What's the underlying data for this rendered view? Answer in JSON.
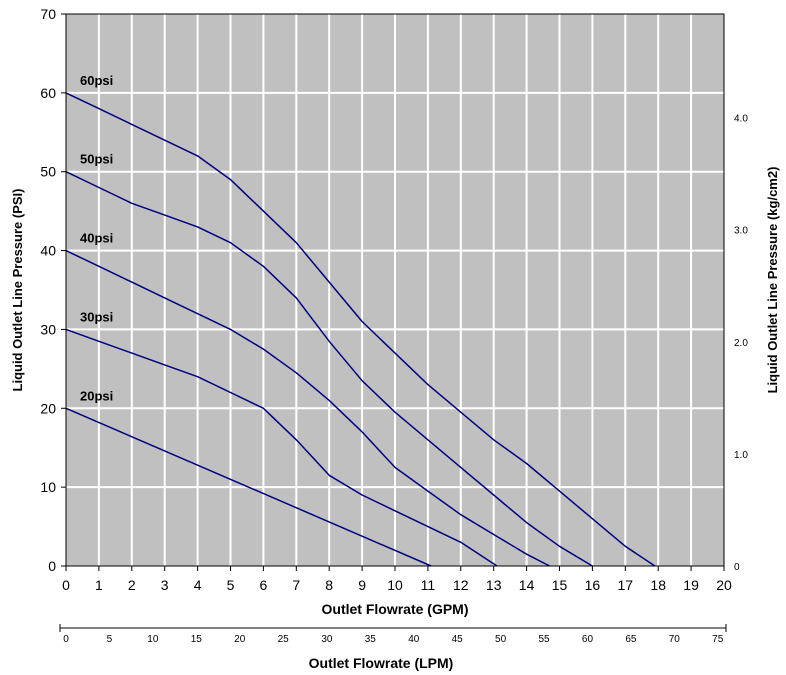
{
  "chart_data": {
    "type": "line",
    "background_color": "#c0c0c0",
    "grid": true,
    "grid_color": "#ffffff",
    "line_color": "#000080",
    "x": {
      "label": "Outlet Flowrate (GPM)",
      "lim": [
        0,
        20
      ],
      "ticks": [
        "0",
        "1",
        "2",
        "3",
        "4",
        "5",
        "6",
        "7",
        "8",
        "9",
        "10",
        "11",
        "12",
        "13",
        "14",
        "15",
        "16",
        "17",
        "18",
        "19",
        "20"
      ]
    },
    "y_left": {
      "label": "Liquid Outlet Line Pressure (PSI)",
      "lim": [
        0,
        70
      ],
      "ticks": [
        "0",
        "10",
        "20",
        "30",
        "40",
        "50",
        "60",
        "70"
      ]
    },
    "y_right": {
      "label": "Liquid Outlet Line Pressure (kg/cm2)",
      "ticks": [
        {
          "label": "0",
          "psi": 0
        },
        {
          "label": "1.0",
          "psi": 14.2
        },
        {
          "label": "2.0",
          "psi": 28.4
        },
        {
          "label": "3.0",
          "psi": 42.7
        },
        {
          "label": "4.0",
          "psi": 56.9
        }
      ]
    },
    "x_secondary": {
      "label": "Outlet Flowrate (LPM)",
      "ticks": [
        {
          "label": "0",
          "gpm": 0
        },
        {
          "label": "5",
          "gpm": 1.32
        },
        {
          "label": "10",
          "gpm": 2.64
        },
        {
          "label": "15",
          "gpm": 3.96
        },
        {
          "label": "20",
          "gpm": 5.28
        },
        {
          "label": "25",
          "gpm": 6.6
        },
        {
          "label": "30",
          "gpm": 7.93
        },
        {
          "label": "35",
          "gpm": 9.25
        },
        {
          "label": "40",
          "gpm": 10.57
        },
        {
          "label": "45",
          "gpm": 11.89
        },
        {
          "label": "50",
          "gpm": 13.21
        },
        {
          "label": "55",
          "gpm": 14.53
        },
        {
          "label": "60",
          "gpm": 15.85
        },
        {
          "label": "65",
          "gpm": 17.17
        },
        {
          "label": "70",
          "gpm": 18.49
        },
        {
          "label": "75",
          "gpm": 19.81
        }
      ]
    },
    "series": [
      {
        "name": "60psi",
        "x": [
          0,
          1,
          2,
          3,
          4,
          5,
          6,
          7,
          8,
          9,
          10,
          11,
          12,
          13,
          14,
          15,
          16,
          17,
          17.9
        ],
        "y": [
          60,
          58,
          56,
          54,
          52,
          49,
          45,
          41,
          36,
          31,
          27,
          23,
          19.5,
          16,
          13,
          9.5,
          6,
          2.5,
          0
        ]
      },
      {
        "name": "50psi",
        "x": [
          0,
          1,
          2,
          3,
          4,
          5,
          6,
          7,
          8,
          9,
          10,
          11,
          12,
          13,
          14,
          15,
          16
        ],
        "y": [
          50,
          48,
          46,
          44.5,
          43,
          41,
          38,
          34,
          28.5,
          23.5,
          19.5,
          16,
          12.5,
          9,
          5.5,
          2.5,
          0
        ]
      },
      {
        "name": "40psi",
        "x": [
          0,
          1,
          2,
          3,
          4,
          5,
          6,
          7,
          8,
          9,
          10,
          11,
          12,
          13,
          14,
          14.7
        ],
        "y": [
          40,
          38,
          36,
          34,
          32,
          30,
          27.5,
          24.5,
          21,
          17,
          12.5,
          9.5,
          6.5,
          4,
          1.5,
          0
        ]
      },
      {
        "name": "30psi",
        "x": [
          0,
          1,
          2,
          3,
          4,
          5,
          6,
          7,
          8,
          9,
          10,
          11,
          12,
          13.1
        ],
        "y": [
          30,
          28.5,
          27,
          25.5,
          24,
          22,
          20,
          16,
          11.5,
          9,
          7,
          5,
          3,
          0
        ]
      },
      {
        "name": "20psi",
        "x": [
          0,
          11.1
        ],
        "y": [
          20,
          0
        ]
      }
    ]
  }
}
